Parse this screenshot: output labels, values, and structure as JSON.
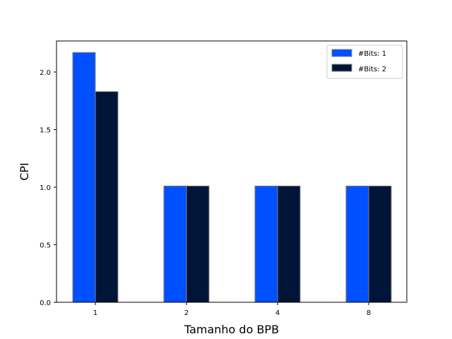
{
  "chart_data": {
    "type": "bar",
    "categories": [
      "1",
      "2",
      "4",
      "8"
    ],
    "series": [
      {
        "name": "#Bits: 1",
        "values": [
          2.17,
          1.01,
          1.01,
          1.01
        ],
        "color": "#0050ff"
      },
      {
        "name": "#Bits: 2",
        "values": [
          1.83,
          1.01,
          1.01,
          1.01
        ],
        "color": "#001438"
      }
    ],
    "bar_edge_color": "#808080",
    "title": "",
    "xlabel": "Tamanho do BPB",
    "ylabel": "CPI",
    "ylim": [
      0,
      2.27
    ],
    "yticks": [
      "0.0",
      "0.5",
      "1.0",
      "1.5",
      "2.0"
    ],
    "grid": false,
    "legend_position": "top-right"
  }
}
